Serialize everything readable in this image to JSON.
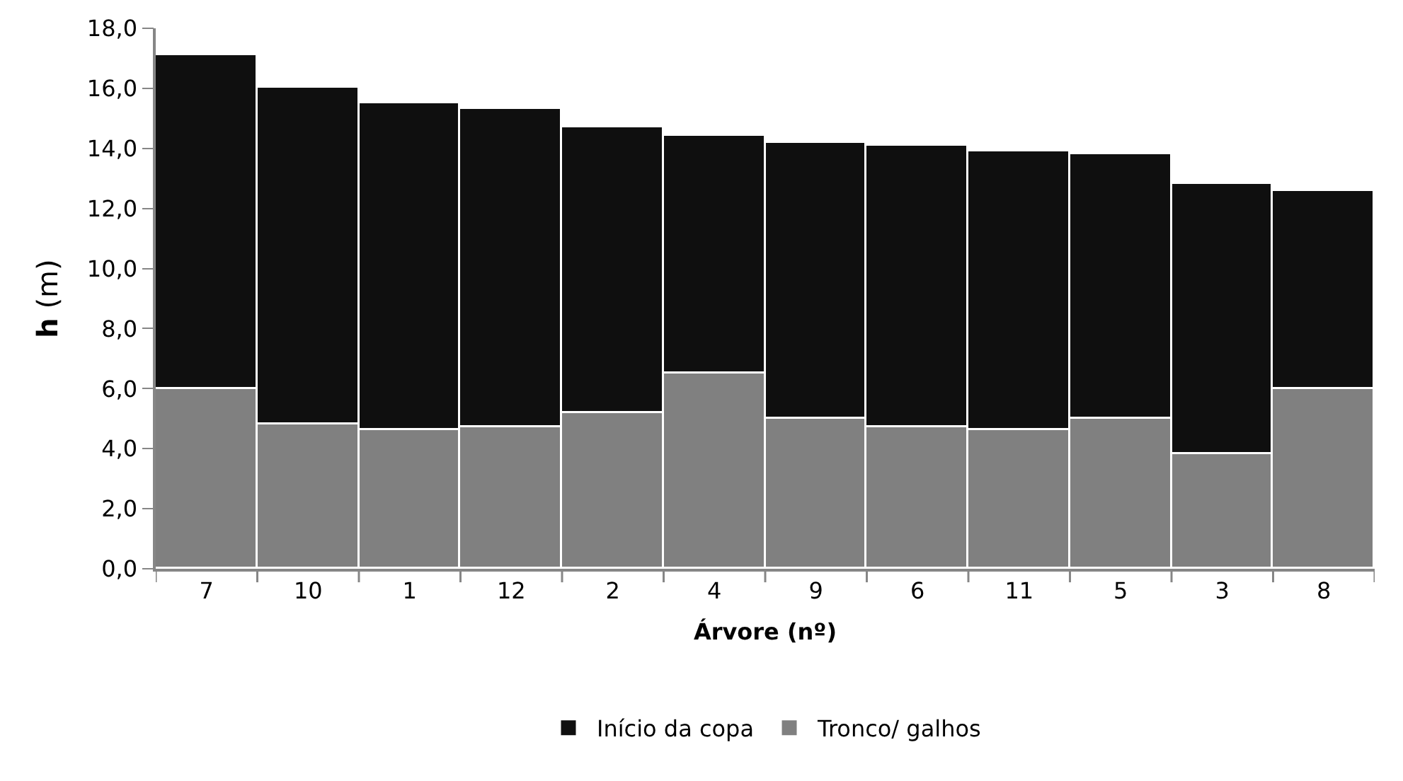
{
  "chart_data": {
    "type": "bar",
    "stacked": true,
    "xlabel": "Árvore (nº)",
    "ylabel": "h (m)",
    "categories": [
      "7",
      "10",
      "1",
      "12",
      "2",
      "4",
      "9",
      "6",
      "11",
      "5",
      "3",
      "8"
    ],
    "series": [
      {
        "name": "Tronco/ galhos",
        "color": "#808080",
        "values": [
          6.0,
          4.8,
          4.6,
          4.7,
          5.2,
          6.5,
          5.0,
          4.7,
          4.6,
          5.0,
          3.8,
          6.0
        ]
      },
      {
        "name": "Início da copa",
        "color": "#0f0f0f",
        "values": [
          11.1,
          11.2,
          10.9,
          10.6,
          9.5,
          7.9,
          9.2,
          9.4,
          9.3,
          8.8,
          9.0,
          6.6
        ]
      }
    ],
    "ylim": [
      0,
      18
    ],
    "yticks": [
      {
        "value": 0,
        "label": "0,0"
      },
      {
        "value": 2,
        "label": "2,0"
      },
      {
        "value": 4,
        "label": "4,0"
      },
      {
        "value": 6,
        "label": "6,0"
      },
      {
        "value": 8,
        "label": "8,0"
      },
      {
        "value": 10,
        "label": "10,0"
      },
      {
        "value": 12,
        "label": "12,0"
      },
      {
        "value": 14,
        "label": "14,0"
      },
      {
        "value": 16,
        "label": "16,0"
      },
      {
        "value": 18,
        "label": "18,0"
      }
    ],
    "legend": "bottom"
  }
}
